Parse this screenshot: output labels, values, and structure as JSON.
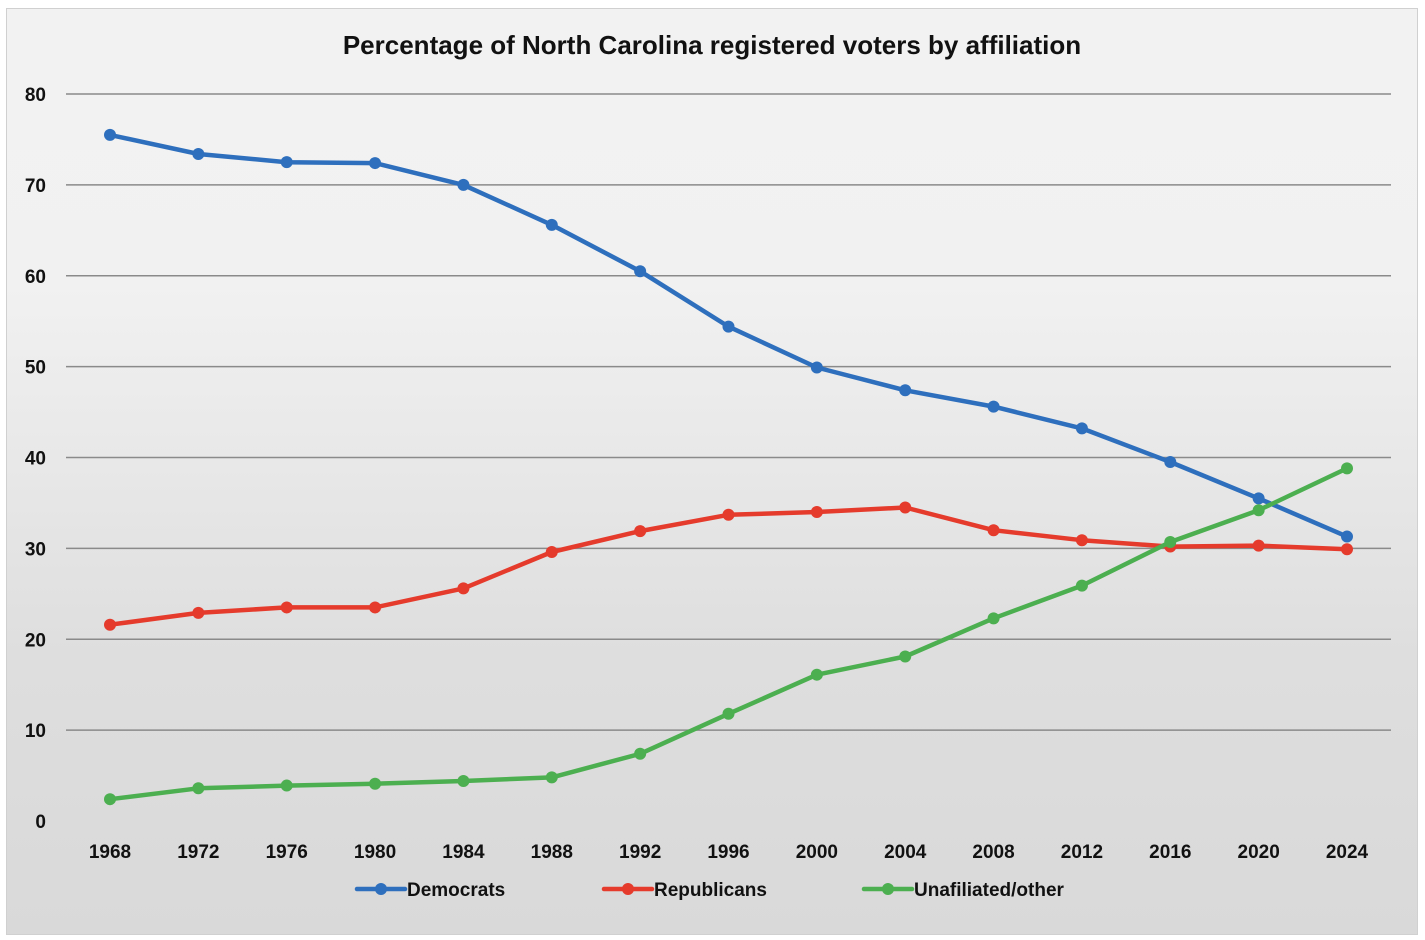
{
  "chart_data": {
    "type": "line",
    "title": "Percentage of North Carolina registered voters by affiliation",
    "xlabel": "",
    "ylabel": "",
    "x": [
      "1968",
      "1972",
      "1976",
      "1980",
      "1984",
      "1988",
      "1992",
      "1996",
      "2000",
      "2004",
      "2008",
      "2012",
      "2016",
      "2020",
      "2024"
    ],
    "ylim": [
      0,
      80
    ],
    "yticks": [
      "0",
      "10",
      "20",
      "30",
      "40",
      "50",
      "60",
      "70",
      "80"
    ],
    "grid": true,
    "legend_position": "bottom",
    "series": [
      {
        "name": "Democrats",
        "color": "#2e6fbd",
        "values": [
          75.5,
          73.4,
          72.5,
          72.4,
          70.0,
          65.6,
          60.5,
          54.4,
          49.9,
          47.4,
          45.6,
          43.2,
          39.5,
          35.5,
          31.3
        ]
      },
      {
        "name": "Republicans",
        "color": "#e53b2c",
        "values": [
          21.6,
          22.9,
          23.5,
          23.5,
          25.6,
          29.6,
          31.9,
          33.7,
          34.0,
          34.5,
          32.0,
          30.9,
          30.2,
          30.3,
          29.9
        ]
      },
      {
        "name": "Unafiliated/other",
        "color": "#4caf50",
        "values": [
          2.4,
          3.6,
          3.9,
          4.1,
          4.4,
          4.8,
          7.4,
          11.8,
          16.1,
          18.1,
          22.3,
          25.9,
          30.7,
          34.2,
          38.8
        ]
      }
    ]
  }
}
